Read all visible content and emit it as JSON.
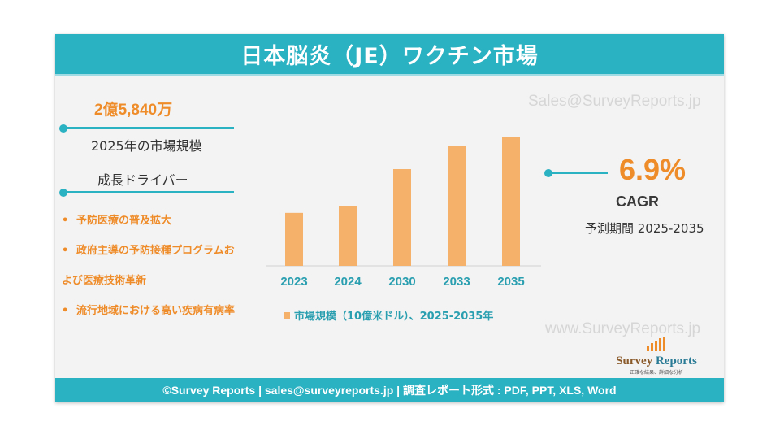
{
  "header": {
    "title": "日本脳炎（JE）ワクチン市場"
  },
  "watermarks": {
    "top": "Sales@SurveyReports.jp",
    "bottom": "www.SurveyReports.jp"
  },
  "market": {
    "size_value": "2億5,840万",
    "size_label": "2025年の市場規模"
  },
  "drivers": {
    "heading": "成長ドライバー",
    "items": [
      {
        "line1": "予防医療の普及拡大",
        "line2": ""
      },
      {
        "line1": "政府主導の予防接種プログラムお",
        "line2": "よび医療技術革新"
      },
      {
        "line1": "流行地域における高い疾病有病率",
        "line2": ""
      }
    ]
  },
  "cagr": {
    "value": "6.9%",
    "label": "CAGR",
    "forecast": "予測期間 2025-2035"
  },
  "logo": {
    "brand_a": "Survey",
    "brand_b": "Reports",
    "tagline": "正確な結果、詳細な分析"
  },
  "footer": {
    "text": "©Survey Reports | sales@surveyreports.jp |  調査レポート形式 : PDF, PPT, XLS, Word"
  },
  "colors": {
    "teal": "#2ab1c2",
    "orange": "#ef8c2a",
    "bar": "#f5b06a"
  },
  "chart_data": {
    "type": "bar",
    "categories": [
      "2023",
      "2024",
      "2030",
      "2033",
      "2035"
    ],
    "values": [
      0.23,
      0.26,
      0.42,
      0.52,
      0.56
    ],
    "series": [
      {
        "name": "市場規模（10億米ドル）、2025-2035年",
        "values": [
          0.23,
          0.26,
          0.42,
          0.52,
          0.56
        ]
      }
    ],
    "legend_label": "市場規模（10億米ドル）、2025-2035年",
    "legend_position": "bottom",
    "ylim": [
      0,
      0.6
    ],
    "grid": false
  }
}
